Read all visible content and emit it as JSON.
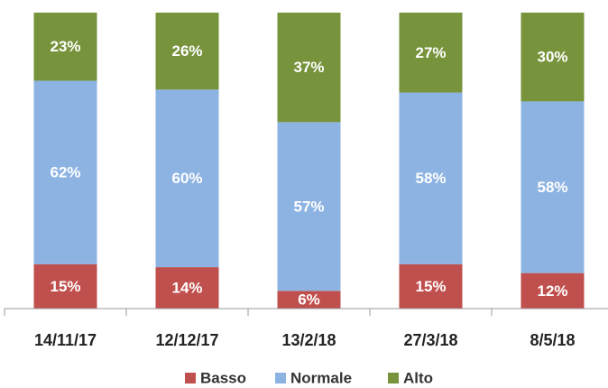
{
  "chart_data": {
    "type": "stacked_bar",
    "categories": [
      "14/11/17",
      "12/12/17",
      "13/2/18",
      "27/3/18",
      "8/5/18"
    ],
    "series": [
      {
        "name": "Basso",
        "color": "#c0504d",
        "values": [
          15,
          14,
          6,
          15,
          12
        ],
        "value_labels": [
          "15%",
          "14%",
          "6%",
          "15%",
          "12%"
        ]
      },
      {
        "name": "Normale",
        "color": "#8db3e2",
        "values": [
          62,
          60,
          57,
          58,
          58
        ],
        "value_labels": [
          "62%",
          "60%",
          "57%",
          "58%",
          "58%"
        ]
      },
      {
        "name": "Alto",
        "color": "#77933c",
        "values": [
          23,
          26,
          37,
          27,
          30
        ],
        "value_labels": [
          "23%",
          "26%",
          "37%",
          "27%",
          "30%"
        ]
      }
    ],
    "legend": "bottom"
  }
}
